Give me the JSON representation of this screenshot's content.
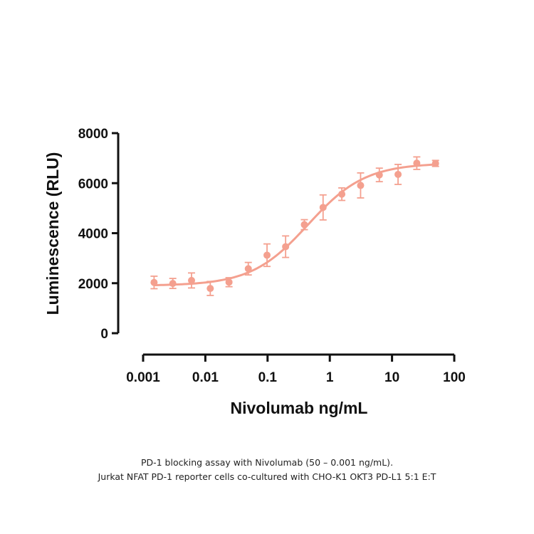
{
  "chart_data": {
    "type": "scatter",
    "title": "",
    "xlabel": "Nivolumab ng/mL",
    "ylabel": "Luminescence  (RLU)",
    "x_scale": "log",
    "xlim": [
      0.001,
      100
    ],
    "ylim": [
      0,
      8000
    ],
    "x_ticks": [
      0.001,
      0.01,
      0.1,
      1,
      10,
      100
    ],
    "x_tick_labels": [
      "0.001",
      "0.01",
      "0.1",
      "1",
      "10",
      "100"
    ],
    "y_ticks": [
      0,
      2000,
      4000,
      6000,
      8000
    ],
    "y_tick_labels": [
      "0",
      "2000",
      "4000",
      "6000",
      "8000"
    ],
    "grid": false,
    "legend": "none",
    "color": "#f4a08f",
    "series": [
      {
        "x": [
          0.0015,
          0.003,
          0.006,
          0.012,
          0.024,
          0.049,
          0.098,
          0.195,
          0.39,
          0.78,
          1.56,
          3.125,
          6.25,
          12.5,
          25,
          50
        ],
        "y": [
          2030,
          1990,
          2110,
          1790,
          2040,
          2580,
          3120,
          3460,
          4340,
          5030,
          5560,
          5910,
          6330,
          6350,
          6800,
          6790
        ],
        "error": [
          250,
          200,
          300,
          280,
          180,
          250,
          450,
          430,
          200,
          500,
          250,
          500,
          270,
          400,
          250,
          120
        ],
        "fit": {
          "model": "4PL",
          "bottom": 1900,
          "top": 6800,
          "ec50": 0.45,
          "hill": 0.95
        }
      }
    ]
  },
  "caption": {
    "line1": "PD-1 blocking assay with Nivolumab (50 – 0.001 ng/mL).",
    "line2": "Jurkat NFAT PD-1 reporter cells co-cultured with CHO-K1 OKT3 PD-L1 5:1 E:T"
  }
}
